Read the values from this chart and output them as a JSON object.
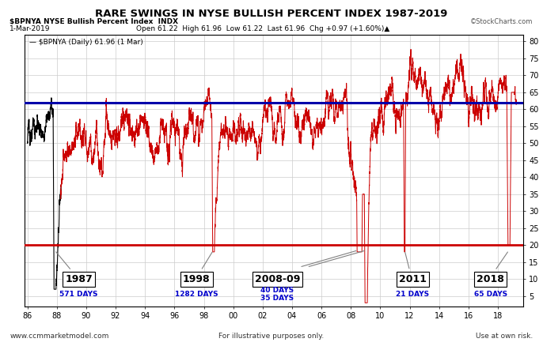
{
  "title": "RARE SWINGS IN NYSE BULLISH PERCENT INDEX 1987-2019",
  "subtitle_left": "$BPNYA NYSE Bullish Percent Index  INDX",
  "subtitle_right": "©StockCharts.com",
  "info_line_left": "1-Mar-2019",
  "info_line_right": "Open 61.22  High 61.96  Low 61.22  Last 61.96  Chg +0.97 (+1.60%)▲",
  "legend_line": "— $BPNYA (Daily) 61.96 (1 Mar)",
  "xlabel_ticks": [
    "86",
    "88",
    "90",
    "92",
    "94",
    "96",
    "98",
    "00",
    "02",
    "04",
    "06",
    "08",
    "10",
    "12",
    "14",
    "16",
    "18"
  ],
  "x_tick_values": [
    1986,
    1988,
    1990,
    1992,
    1994,
    1996,
    1998,
    2000,
    2002,
    2004,
    2006,
    2008,
    2010,
    2012,
    2014,
    2016,
    2018
  ],
  "ylabel_ticks": [
    5,
    10,
    15,
    20,
    25,
    30,
    35,
    40,
    45,
    50,
    55,
    60,
    65,
    70,
    75,
    80
  ],
  "blue_hline": 62,
  "red_hline": 20,
  "bg_color": "#ffffff",
  "grid_color": "#cccccc",
  "annotation_years": [
    "1987",
    "1998",
    "2008-09",
    "2011",
    "2018"
  ],
  "annotation_days": [
    "571 DAYS",
    "1282 DAYS",
    "40 DAYS\n35 DAYS",
    "21 DAYS",
    "65 DAYS"
  ],
  "footer_left": "www.ccmmarketmodel.com",
  "footer_center": "For illustrative purposes only.",
  "footer_right": "Use at own risk.",
  "xlim": [
    1985.8,
    2019.7
  ],
  "ylim": [
    2,
    82
  ],
  "line_color_red": "#cc0000",
  "line_color_black": "#000000",
  "blue_line_color": "#0000aa",
  "red_hline_color": "#cc0000",
  "anno_text_color": "#0000cc",
  "anno_box_color": "#000000"
}
